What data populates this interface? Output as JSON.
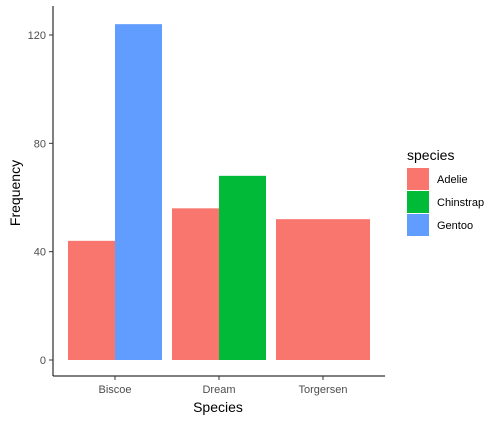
{
  "chart_data": {
    "type": "bar",
    "categories": [
      "Biscoe",
      "Dream",
      "Torgersen"
    ],
    "series": [
      {
        "name": "Adelie",
        "values": [
          44,
          56,
          52
        ],
        "color": "#F8766D"
      },
      {
        "name": "Chinstrap",
        "values": [
          0,
          68,
          0
        ],
        "color": "#00BA38"
      },
      {
        "name": "Gentoo",
        "values": [
          124,
          0,
          0
        ],
        "color": "#619CFF"
      }
    ],
    "bars": [
      {
        "category": "Biscoe",
        "species": "Adelie",
        "value": 44
      },
      {
        "category": "Biscoe",
        "species": "Gentoo",
        "value": 124
      },
      {
        "category": "Dream",
        "species": "Adelie",
        "value": 56
      },
      {
        "category": "Dream",
        "species": "Chinstrap",
        "value": 68
      },
      {
        "category": "Torgersen",
        "species": "Adelie",
        "value": 52
      }
    ],
    "title": "",
    "xlabel": "Species",
    "ylabel": "Frequency",
    "ylim": [
      0,
      130
    ],
    "yticks": [
      0,
      40,
      80,
      120
    ],
    "grid": false,
    "legend": {
      "title": "species",
      "position": "right",
      "entries": [
        "Adelie",
        "Chinstrap",
        "Gentoo"
      ]
    },
    "colors": {
      "Adelie": "#F8766D",
      "Chinstrap": "#00BA38",
      "Gentoo": "#619CFF",
      "axis": "#000000",
      "tick_label": "#4d4d4d"
    }
  }
}
